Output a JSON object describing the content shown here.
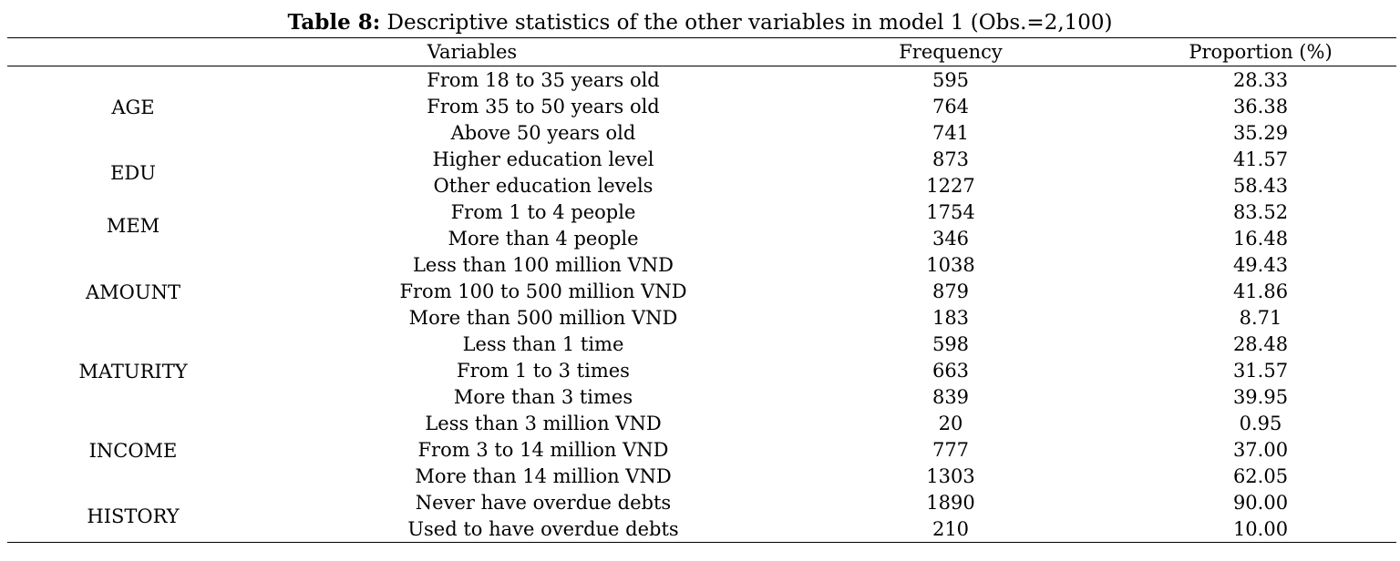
{
  "caption": {
    "label": "Table 8:",
    "text": " Descriptive statistics of the other variables in model 1 (Obs.=2,100)"
  },
  "headers": {
    "variables": "Variables",
    "frequency": "Frequency",
    "proportion": "Proportion (%)"
  },
  "groups": [
    {
      "name": "AGE",
      "rows": 3
    },
    {
      "name": "EDU",
      "rows": 2
    },
    {
      "name": "MEM",
      "rows": 2
    },
    {
      "name": "AMOUNT",
      "rows": 3
    },
    {
      "name": "MATURITY",
      "rows": 3
    },
    {
      "name": "INCOME",
      "rows": 3
    },
    {
      "name": "HISTORY",
      "rows": 2
    }
  ],
  "rows": [
    {
      "category": "From 18 to 35 years old",
      "frequency": "595",
      "proportion": "28.33"
    },
    {
      "category": "From 35 to 50 years old",
      "frequency": "764",
      "proportion": "36.38"
    },
    {
      "category": "Above 50 years old",
      "frequency": "741",
      "proportion": "35.29"
    },
    {
      "category": "Higher education level",
      "frequency": "873",
      "proportion": "41.57"
    },
    {
      "category": "Other education levels",
      "frequency": "1227",
      "proportion": "58.43"
    },
    {
      "category": "From 1 to 4 people",
      "frequency": "1754",
      "proportion": "83.52"
    },
    {
      "category": "More than 4 people",
      "frequency": "346",
      "proportion": "16.48"
    },
    {
      "category": "Less than 100 million VND",
      "frequency": "1038",
      "proportion": "49.43"
    },
    {
      "category": "From 100 to 500 million VND",
      "frequency": "879",
      "proportion": "41.86"
    },
    {
      "category": "More than 500 million VND",
      "frequency": "183",
      "proportion": "8.71"
    },
    {
      "category": "Less than 1 time",
      "frequency": "598",
      "proportion": "28.48"
    },
    {
      "category": "From 1 to 3 times",
      "frequency": "663",
      "proportion": "31.57"
    },
    {
      "category": "More than 3 times",
      "frequency": "839",
      "proportion": "39.95"
    },
    {
      "category": "Less than 3 million VND",
      "frequency": "20",
      "proportion": "0.95"
    },
    {
      "category": "From 3 to 14 million VND",
      "frequency": "777",
      "proportion": "37.00"
    },
    {
      "category": "More than 14 million VND",
      "frequency": "1303",
      "proportion": "62.05"
    },
    {
      "category": "Never have overdue debts",
      "frequency": "1890",
      "proportion": "90.00"
    },
    {
      "category": "Used to have overdue debts",
      "frequency": "210",
      "proportion": "10.00"
    }
  ]
}
